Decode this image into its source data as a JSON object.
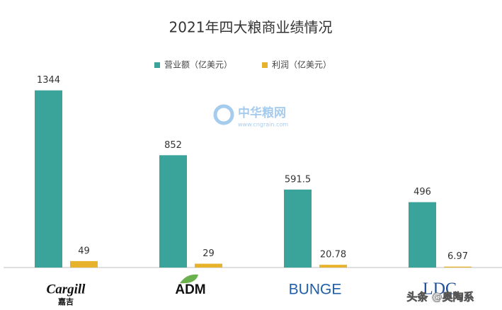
{
  "chart_data": {
    "type": "bar",
    "title": "2021年四大粮商业绩情况",
    "categories": [
      "Cargill",
      "ADM",
      "BUNGE",
      "LDC"
    ],
    "category_sublabels": [
      "嘉吉",
      null,
      null,
      null
    ],
    "series": [
      {
        "name": "营业额（亿美元）",
        "color": "#3aa39a",
        "values": [
          1344,
          852,
          591.5,
          496
        ]
      },
      {
        "name": "利润（亿美元）",
        "color": "#e8b32c",
        "values": [
          49,
          29,
          20.78,
          6.97
        ]
      }
    ],
    "ylim": [
      0,
      1600
    ],
    "legend": "top",
    "watermarks": [
      "中华粮网",
      "www.cngrain.com",
      "头条 @奥陶系"
    ]
  }
}
